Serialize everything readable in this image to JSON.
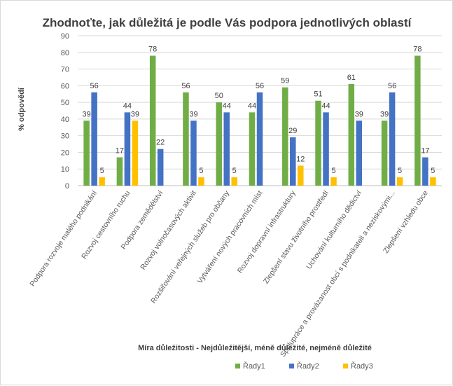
{
  "chart_data": {
    "type": "bar",
    "title": "Zhodnoťte, jak důležitá je podle Vás podpora jednotlivých oblastí",
    "xlabel": "Míra důležitosti - Nejdůležitější, méně důležité, nejméně důležité",
    "ylabel": "% odpovědí",
    "ylim": [
      0,
      90
    ],
    "yticks": [
      0,
      10,
      20,
      30,
      40,
      50,
      60,
      70,
      80,
      90
    ],
    "grid": true,
    "legend_position": "bottom",
    "categories": [
      "Podpora rozvoje malého podnikání",
      "Rozvoj cestovního ruchu",
      "Podpora zemědělství",
      "Rozvoj volnočasových aktivit",
      "Rozšiřování veřejných služeb pro občany",
      "Vytváření nových pracovních míst",
      "Rozvoj dopravní infrastruktury",
      "Zlepšení stavu životního prostředí",
      "Uchování kulturního dědictví",
      "Spolupráce a provázanost obcí s podnikateli a neziskovými...",
      "Zlepšení vzhledu obce"
    ],
    "series": [
      {
        "name": "Řady1",
        "color": "#70ad47",
        "values": [
          39,
          17,
          78,
          56,
          50,
          44,
          59,
          51,
          61,
          39,
          78
        ]
      },
      {
        "name": "Řady2",
        "color": "#4472c4",
        "values": [
          56,
          44,
          22,
          39,
          44,
          56,
          29,
          44,
          39,
          56,
          17
        ]
      },
      {
        "name": "Řady3",
        "color": "#ffc000",
        "values": [
          5,
          39,
          null,
          5,
          5,
          null,
          12,
          5,
          null,
          5,
          5
        ]
      }
    ]
  }
}
